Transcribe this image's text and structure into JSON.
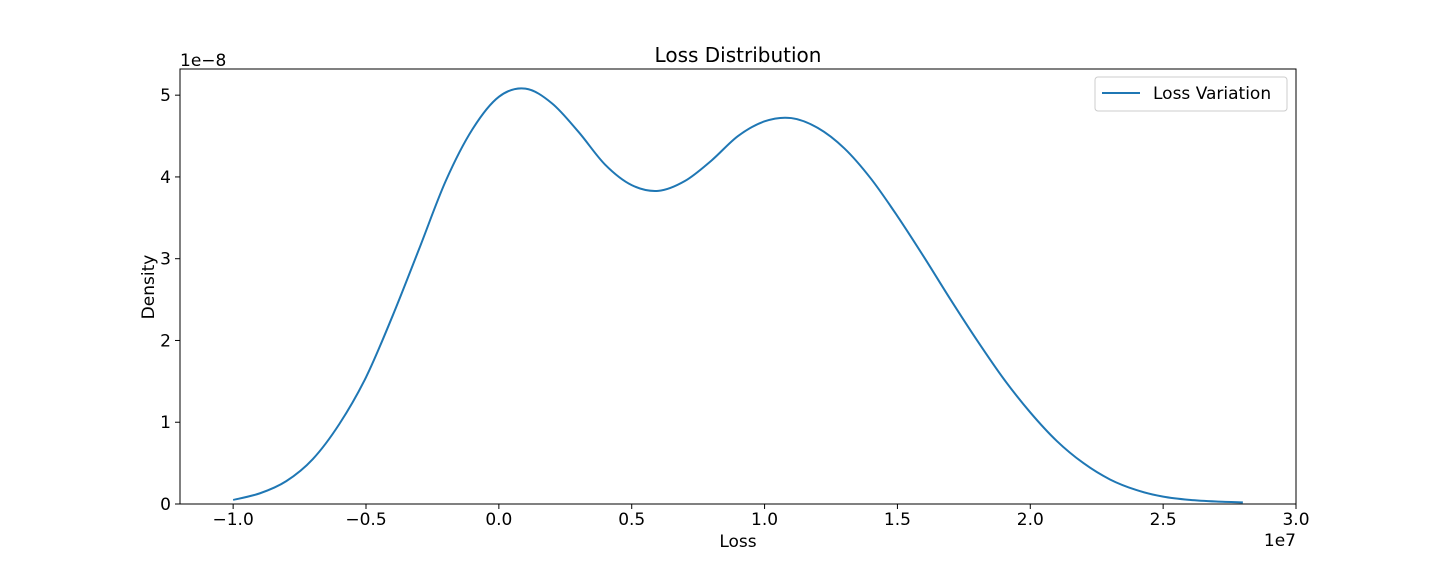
{
  "chart_data": {
    "type": "line",
    "title": "Loss Distribution",
    "xlabel": "Loss",
    "ylabel": "Density",
    "x_offset_text": "1e7",
    "y_offset_text": "1e−8",
    "xlim": [
      -1.2,
      3.0
    ],
    "ylim": [
      0,
      5.32
    ],
    "x_ticks": [
      -1.0,
      -0.5,
      0.0,
      0.5,
      1.0,
      1.5,
      2.0,
      2.5,
      3.0
    ],
    "x_tick_labels": [
      "−1.0",
      "−0.5",
      "0.0",
      "0.5",
      "1.0",
      "1.5",
      "2.0",
      "2.5",
      "3.0"
    ],
    "y_ticks": [
      0,
      1,
      2,
      3,
      4,
      5
    ],
    "y_tick_labels": [
      "0",
      "1",
      "2",
      "3",
      "4",
      "5"
    ],
    "grid": false,
    "legend_position": "top-right",
    "series": [
      {
        "name": "Loss Variation",
        "color": "#1f77b4",
        "x": [
          -1.0,
          -0.9,
          -0.8,
          -0.7,
          -0.6,
          -0.5,
          -0.4,
          -0.3,
          -0.2,
          -0.1,
          0.0,
          0.1,
          0.2,
          0.3,
          0.4,
          0.5,
          0.6,
          0.7,
          0.8,
          0.9,
          1.0,
          1.1,
          1.2,
          1.3,
          1.4,
          1.5,
          1.6,
          1.7,
          1.8,
          1.9,
          2.0,
          2.1,
          2.2,
          2.3,
          2.4,
          2.5,
          2.6,
          2.7,
          2.8
        ],
        "y": [
          0.05,
          0.13,
          0.28,
          0.55,
          0.98,
          1.55,
          2.3,
          3.12,
          3.95,
          4.58,
          4.98,
          5.08,
          4.9,
          4.55,
          4.15,
          3.9,
          3.83,
          3.95,
          4.2,
          4.5,
          4.68,
          4.72,
          4.6,
          4.35,
          3.98,
          3.52,
          3.02,
          2.5,
          2.0,
          1.53,
          1.12,
          0.77,
          0.5,
          0.3,
          0.17,
          0.09,
          0.05,
          0.03,
          0.02
        ]
      }
    ]
  }
}
